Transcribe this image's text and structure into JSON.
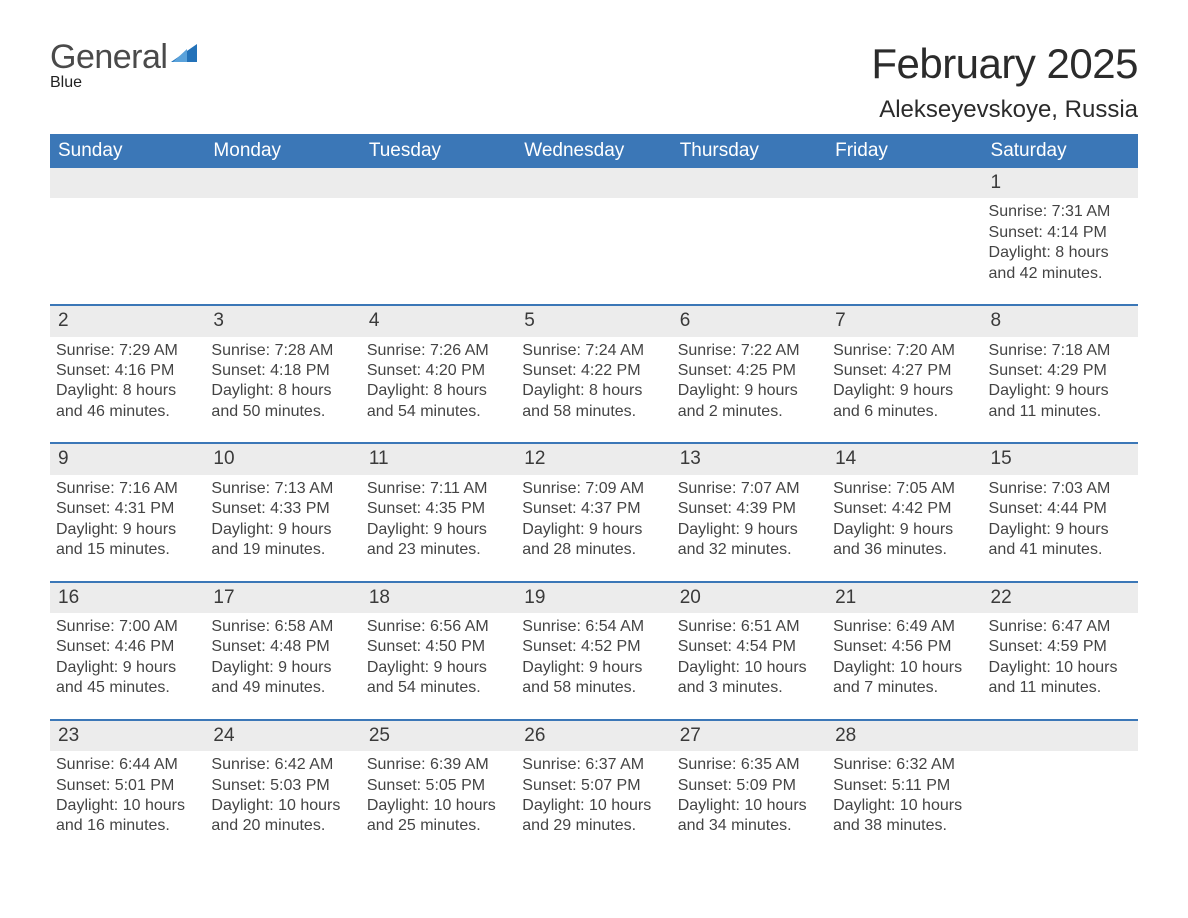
{
  "brand": {
    "word1": "General",
    "word2": "Blue"
  },
  "title": "February 2025",
  "location": "Alekseyevskoye, Russia",
  "colors": {
    "header_bg": "#3b77b7",
    "brand_blue": "#2372b9",
    "row_gray": "#ececec",
    "rule": "#3b77b7",
    "text": "#222222",
    "white": "#ffffff"
  },
  "weekday_headers": [
    "Sunday",
    "Monday",
    "Tuesday",
    "Wednesday",
    "Thursday",
    "Friday",
    "Saturday"
  ],
  "layout": {
    "first_weekday_index": 6,
    "days_in_month": 28,
    "cell_font_size_pt": 12,
    "header_font_size_pt": 14,
    "title_font_size_pt": 32
  },
  "days": [
    {
      "n": 1,
      "sunrise": "7:31 AM",
      "sunset": "4:14 PM",
      "daylight_h": 8,
      "daylight_m": 42
    },
    {
      "n": 2,
      "sunrise": "7:29 AM",
      "sunset": "4:16 PM",
      "daylight_h": 8,
      "daylight_m": 46
    },
    {
      "n": 3,
      "sunrise": "7:28 AM",
      "sunset": "4:18 PM",
      "daylight_h": 8,
      "daylight_m": 50
    },
    {
      "n": 4,
      "sunrise": "7:26 AM",
      "sunset": "4:20 PM",
      "daylight_h": 8,
      "daylight_m": 54
    },
    {
      "n": 5,
      "sunrise": "7:24 AM",
      "sunset": "4:22 PM",
      "daylight_h": 8,
      "daylight_m": 58
    },
    {
      "n": 6,
      "sunrise": "7:22 AM",
      "sunset": "4:25 PM",
      "daylight_h": 9,
      "daylight_m": 2
    },
    {
      "n": 7,
      "sunrise": "7:20 AM",
      "sunset": "4:27 PM",
      "daylight_h": 9,
      "daylight_m": 6
    },
    {
      "n": 8,
      "sunrise": "7:18 AM",
      "sunset": "4:29 PM",
      "daylight_h": 9,
      "daylight_m": 11
    },
    {
      "n": 9,
      "sunrise": "7:16 AM",
      "sunset": "4:31 PM",
      "daylight_h": 9,
      "daylight_m": 15
    },
    {
      "n": 10,
      "sunrise": "7:13 AM",
      "sunset": "4:33 PM",
      "daylight_h": 9,
      "daylight_m": 19
    },
    {
      "n": 11,
      "sunrise": "7:11 AM",
      "sunset": "4:35 PM",
      "daylight_h": 9,
      "daylight_m": 23
    },
    {
      "n": 12,
      "sunrise": "7:09 AM",
      "sunset": "4:37 PM",
      "daylight_h": 9,
      "daylight_m": 28
    },
    {
      "n": 13,
      "sunrise": "7:07 AM",
      "sunset": "4:39 PM",
      "daylight_h": 9,
      "daylight_m": 32
    },
    {
      "n": 14,
      "sunrise": "7:05 AM",
      "sunset": "4:42 PM",
      "daylight_h": 9,
      "daylight_m": 36
    },
    {
      "n": 15,
      "sunrise": "7:03 AM",
      "sunset": "4:44 PM",
      "daylight_h": 9,
      "daylight_m": 41
    },
    {
      "n": 16,
      "sunrise": "7:00 AM",
      "sunset": "4:46 PM",
      "daylight_h": 9,
      "daylight_m": 45
    },
    {
      "n": 17,
      "sunrise": "6:58 AM",
      "sunset": "4:48 PM",
      "daylight_h": 9,
      "daylight_m": 49
    },
    {
      "n": 18,
      "sunrise": "6:56 AM",
      "sunset": "4:50 PM",
      "daylight_h": 9,
      "daylight_m": 54
    },
    {
      "n": 19,
      "sunrise": "6:54 AM",
      "sunset": "4:52 PM",
      "daylight_h": 9,
      "daylight_m": 58
    },
    {
      "n": 20,
      "sunrise": "6:51 AM",
      "sunset": "4:54 PM",
      "daylight_h": 10,
      "daylight_m": 3
    },
    {
      "n": 21,
      "sunrise": "6:49 AM",
      "sunset": "4:56 PM",
      "daylight_h": 10,
      "daylight_m": 7
    },
    {
      "n": 22,
      "sunrise": "6:47 AM",
      "sunset": "4:59 PM",
      "daylight_h": 10,
      "daylight_m": 11
    },
    {
      "n": 23,
      "sunrise": "6:44 AM",
      "sunset": "5:01 PM",
      "daylight_h": 10,
      "daylight_m": 16
    },
    {
      "n": 24,
      "sunrise": "6:42 AM",
      "sunset": "5:03 PM",
      "daylight_h": 10,
      "daylight_m": 20
    },
    {
      "n": 25,
      "sunrise": "6:39 AM",
      "sunset": "5:05 PM",
      "daylight_h": 10,
      "daylight_m": 25
    },
    {
      "n": 26,
      "sunrise": "6:37 AM",
      "sunset": "5:07 PM",
      "daylight_h": 10,
      "daylight_m": 29
    },
    {
      "n": 27,
      "sunrise": "6:35 AM",
      "sunset": "5:09 PM",
      "daylight_h": 10,
      "daylight_m": 34
    },
    {
      "n": 28,
      "sunrise": "6:32 AM",
      "sunset": "5:11 PM",
      "daylight_h": 10,
      "daylight_m": 38
    }
  ]
}
